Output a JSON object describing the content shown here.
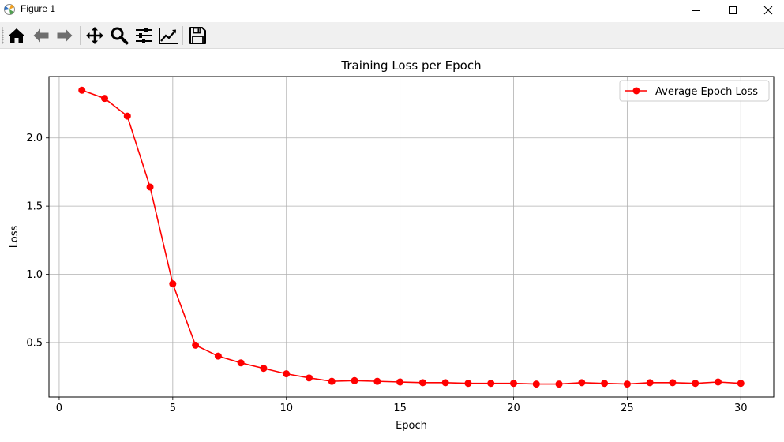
{
  "window": {
    "title": "Figure 1"
  },
  "toolbar": {
    "tools": [
      {
        "name": "home-icon"
      },
      {
        "name": "back-arrow-icon"
      },
      {
        "name": "forward-arrow-icon"
      },
      {
        "name": "pan-move-icon"
      },
      {
        "name": "zoom-magnifier-icon"
      },
      {
        "name": "configure-subplots-icon"
      },
      {
        "name": "edit-axis-curve-icon"
      },
      {
        "name": "save-floppy-icon"
      }
    ]
  },
  "chart_data": {
    "type": "line",
    "title": "Training Loss per Epoch",
    "xlabel": "Epoch",
    "ylabel": "Loss",
    "xlim": [
      -0.45,
      31.45
    ],
    "ylim": [
      0.1,
      2.45
    ],
    "xticks": [
      0,
      5,
      10,
      15,
      20,
      25,
      30
    ],
    "yticks": [
      0.5,
      1.0,
      1.5,
      2.0
    ],
    "grid": true,
    "legend": "top-right",
    "series": [
      {
        "name": "Average Epoch Loss",
        "color": "#ff0000",
        "marker": "circle",
        "x": [
          1,
          2,
          3,
          4,
          5,
          6,
          7,
          8,
          9,
          10,
          11,
          12,
          13,
          14,
          15,
          16,
          17,
          18,
          19,
          20,
          21,
          22,
          23,
          24,
          25,
          26,
          27,
          28,
          29,
          30
        ],
        "y": [
          2.35,
          2.29,
          2.16,
          1.64,
          0.93,
          0.48,
          0.4,
          0.35,
          0.31,
          0.27,
          0.24,
          0.215,
          0.22,
          0.215,
          0.21,
          0.205,
          0.205,
          0.2,
          0.2,
          0.2,
          0.195,
          0.195,
          0.205,
          0.2,
          0.195,
          0.205,
          0.205,
          0.2,
          0.21,
          0.2
        ]
      }
    ]
  }
}
